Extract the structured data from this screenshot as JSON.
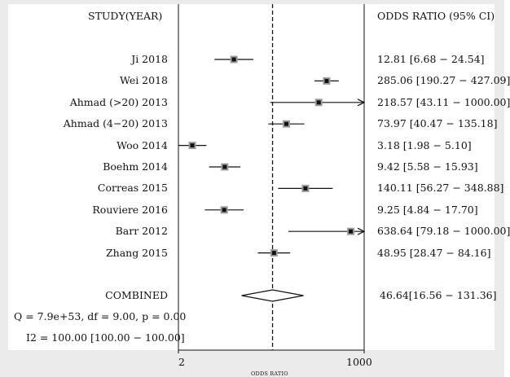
{
  "chart_data": {
    "type": "forest",
    "headers": {
      "left": "STUDY(YEAR)",
      "right": "ODDS RATIO (95% CI)"
    },
    "xlabel": "ODDS RATIO",
    "x_scale": "log",
    "xlim": [
      2,
      1000
    ],
    "x_ticks": [
      "2",
      "1000"
    ],
    "reference_line": 46.64,
    "studies": [
      {
        "label": "Ji 2018",
        "or": 12.81,
        "lo": 6.68,
        "hi": 24.54,
        "text": "12.81 [6.68 − 24.54]"
      },
      {
        "label": "Wei 2018",
        "or": 285.06,
        "lo": 190.27,
        "hi": 427.09,
        "text": "285.06 [190.27 − 427.09]"
      },
      {
        "label": "Ahmad (>20) 2013",
        "or": 218.57,
        "lo": 43.11,
        "hi": 1000.0,
        "text": "218.57 [43.11 − 1000.00]",
        "arrow": true
      },
      {
        "label": "Ahmad (4−20) 2013",
        "or": 73.97,
        "lo": 40.47,
        "hi": 135.18,
        "text": "73.97 [40.47 − 135.18]"
      },
      {
        "label": "Woo 2014",
        "or": 3.18,
        "lo": 1.98,
        "hi": 5.1,
        "text": "3.18 [1.98 − 5.10]"
      },
      {
        "label": "Boehm 2014",
        "or": 9.42,
        "lo": 5.58,
        "hi": 15.93,
        "text": "9.42 [5.58 − 15.93]"
      },
      {
        "label": "Correas 2015",
        "or": 140.11,
        "lo": 56.27,
        "hi": 348.88,
        "text": "140.11 [56.27 − 348.88]"
      },
      {
        "label": "Rouviere 2016",
        "or": 9.25,
        "lo": 4.84,
        "hi": 17.7,
        "text": "9.25 [4.84 − 17.70]"
      },
      {
        "label": "Barr 2012",
        "or": 638.64,
        "lo": 79.18,
        "hi": 1000.0,
        "text": "638.64 [79.18 − 1000.00]",
        "arrow": true
      },
      {
        "label": "Zhang 2015",
        "or": 48.95,
        "lo": 28.47,
        "hi": 84.16,
        "text": "48.95 [28.47 − 84.16]"
      }
    ],
    "combined": {
      "label": "COMBINED",
      "or": 46.64,
      "lo": 16.56,
      "hi": 131.36,
      "text": "46.64[16.56 − 131.36]"
    },
    "stats": {
      "q": "Q = 7.9e+53, df = 9.00, p =  0.00",
      "i2": "I2 = 100.00 [100.00 − 100.00]"
    }
  }
}
